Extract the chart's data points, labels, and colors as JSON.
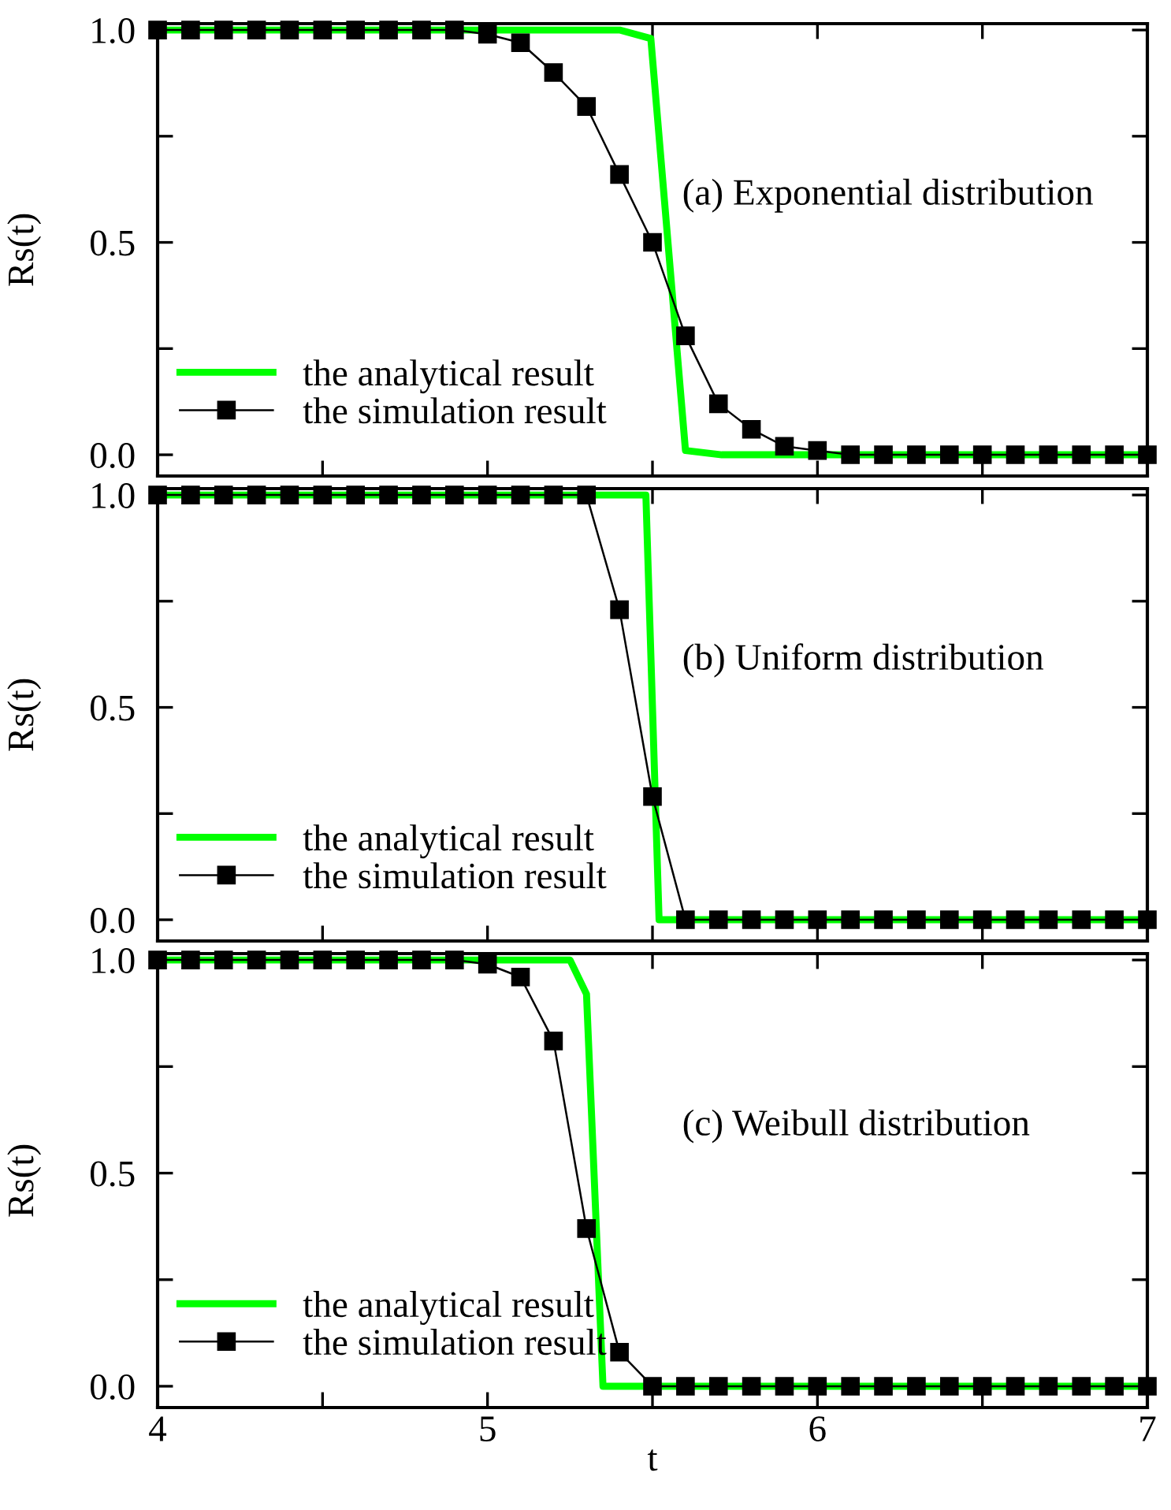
{
  "chart_data": [
    {
      "type": "line",
      "ylabel": "Rs(t)",
      "annotations": [
        "(a) Exponential distribution"
      ],
      "xlim": [
        4,
        7
      ],
      "xticks": [
        4,
        {
          "value": 4.5,
          "label": null
        },
        5,
        {
          "value": 5.5,
          "label": null
        },
        6,
        {
          "value": 6.5,
          "label": null
        },
        7
      ],
      "ylim": [
        -0.05,
        1.015
      ],
      "yticks": [
        {
          "value": 0.0,
          "label": "0.0"
        },
        {
          "value": 0.25,
          "label": null
        },
        {
          "value": 0.5,
          "label": "0.5"
        },
        {
          "value": 0.75,
          "label": null
        },
        {
          "value": 1.0,
          "label": "1.0"
        }
      ],
      "tick_labels": "y",
      "legend": "bottom left",
      "grid": false,
      "series": [
        {
          "name": "the analytical result",
          "color": "#00ff00",
          "marker": "none",
          "x": [
            4,
            5.4,
            5.495,
            5.6,
            5.71,
            7
          ],
          "values": [
            1.0,
            1.0,
            0.98,
            0.01,
            0,
            0
          ]
        },
        {
          "name": "the simulation result",
          "color": "#000000",
          "marker": "square",
          "x": [
            4,
            4.1,
            4.2,
            4.3,
            4.4,
            4.5,
            4.6,
            4.7,
            4.8,
            4.9,
            5.0,
            5.1,
            5.2,
            5.3,
            5.4,
            5.5,
            5.6,
            5.7,
            5.8,
            5.9,
            6.0,
            6.1,
            6.2,
            6.3,
            6.4,
            6.5,
            6.6,
            6.7,
            6.8,
            6.9,
            7.0
          ],
          "values": [
            1,
            1,
            1,
            1,
            1,
            1,
            1,
            1,
            1,
            1,
            0.99,
            0.97,
            0.9,
            0.82,
            0.66,
            0.5,
            0.28,
            0.12,
            0.06,
            0.02,
            0.01,
            0,
            0,
            0,
            0,
            0,
            0,
            0,
            0,
            0,
            0
          ]
        }
      ]
    },
    {
      "type": "line",
      "ylabel": "Rs(t)",
      "annotations": [
        "(b) Uniform distribution"
      ],
      "xlim": [
        4,
        7
      ],
      "xticks": [
        4,
        {
          "value": 4.5,
          "label": null
        },
        5,
        {
          "value": 5.5,
          "label": null
        },
        6,
        {
          "value": 6.5,
          "label": null
        },
        7
      ],
      "ylim": [
        -0.05,
        1.015
      ],
      "yticks": [
        {
          "value": 0.0,
          "label": "0.0"
        },
        {
          "value": 0.25,
          "label": null
        },
        {
          "value": 0.5,
          "label": "0.5"
        },
        {
          "value": 0.75,
          "label": null
        },
        {
          "value": 1.0,
          "label": "1.0"
        }
      ],
      "tick_labels": "y",
      "legend": "bottom left",
      "grid": false,
      "series": [
        {
          "name": "the analytical result",
          "color": "#00ff00",
          "marker": "none",
          "x": [
            4,
            5.48,
            5.52,
            7
          ],
          "values": [
            1.0,
            1.0,
            0,
            0
          ]
        },
        {
          "name": "the simulation result",
          "color": "#000000",
          "marker": "square",
          "x": [
            4,
            4.1,
            4.2,
            4.3,
            4.4,
            4.5,
            4.6,
            4.7,
            4.8,
            4.9,
            5.0,
            5.1,
            5.2,
            5.3,
            5.4,
            5.5,
            5.6,
            5.7,
            5.8,
            5.9,
            6.0,
            6.1,
            6.2,
            6.3,
            6.4,
            6.5,
            6.6,
            6.7,
            6.8,
            6.9,
            7.0
          ],
          "values": [
            1,
            1,
            1,
            1,
            1,
            1,
            1,
            1,
            1,
            1,
            1,
            1,
            1,
            1,
            0.73,
            0.29,
            0,
            0,
            0,
            0,
            0,
            0,
            0,
            0,
            0,
            0,
            0,
            0,
            0,
            0,
            0
          ]
        }
      ]
    },
    {
      "type": "line",
      "xlabel": "t",
      "ylabel": "Rs(t)",
      "annotations": [
        "(c) Weibull distribution"
      ],
      "xlim": [
        4,
        7
      ],
      "xticks": [
        4,
        {
          "value": 4.5,
          "label": null
        },
        5,
        {
          "value": 5.5,
          "label": null
        },
        6,
        {
          "value": 6.5,
          "label": null
        },
        7
      ],
      "ylim": [
        -0.05,
        1.015
      ],
      "yticks": [
        {
          "value": 0.0,
          "label": "0.0"
        },
        {
          "value": 0.25,
          "label": null
        },
        {
          "value": 0.5,
          "label": "0.5"
        },
        {
          "value": 0.75,
          "label": null
        },
        {
          "value": 1.0,
          "label": "1.0"
        }
      ],
      "legend": "bottom left",
      "grid": false,
      "series": [
        {
          "name": "the analytical result",
          "color": "#00ff00",
          "marker": "none",
          "x": [
            4,
            5.25,
            5.3,
            5.35,
            7
          ],
          "values": [
            1.0,
            1.0,
            0.92,
            0,
            0
          ]
        },
        {
          "name": "the simulation result",
          "color": "#000000",
          "marker": "square",
          "x": [
            4,
            4.1,
            4.2,
            4.3,
            4.4,
            4.5,
            4.6,
            4.7,
            4.8,
            4.9,
            5.0,
            5.1,
            5.2,
            5.3,
            5.4,
            5.5,
            5.6,
            5.7,
            5.8,
            5.9,
            6.0,
            6.1,
            6.2,
            6.3,
            6.4,
            6.5,
            6.6,
            6.7,
            6.8,
            6.9,
            7.0
          ],
          "values": [
            1,
            1,
            1,
            1,
            1,
            1,
            1,
            1,
            1,
            1,
            0.99,
            0.96,
            0.81,
            0.37,
            0.08,
            0,
            0,
            0,
            0,
            0,
            0,
            0,
            0,
            0,
            0,
            0,
            0,
            0,
            0,
            0,
            0
          ]
        }
      ]
    }
  ]
}
